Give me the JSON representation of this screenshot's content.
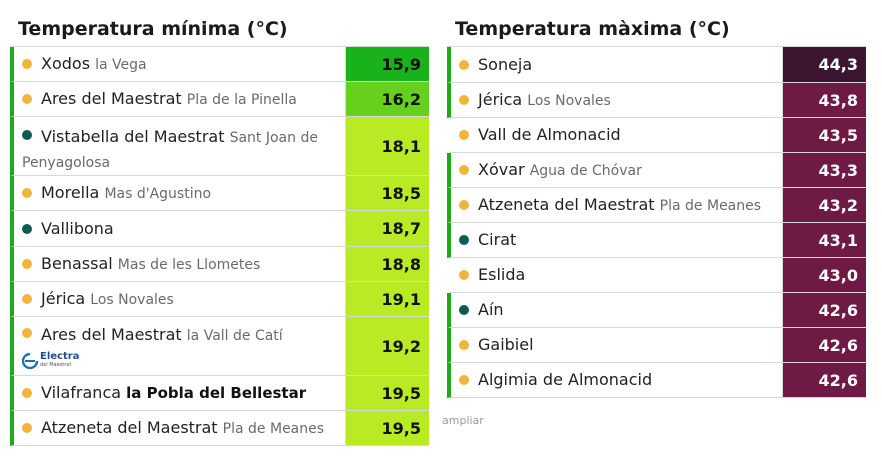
{
  "min": {
    "title": "Temperatura mínima (°C)",
    "rows": [
      {
        "name": "Xodos",
        "sub": "la Vega",
        "value": "15,9",
        "dot": "yellow",
        "color": "#19b21a"
      },
      {
        "name": "Ares del Maestrat",
        "sub": "Pla de la Pinella",
        "value": "16,2",
        "dot": "yellow",
        "color": "#66d11c"
      },
      {
        "name": "Vistabella del Maestrat",
        "sub": "Sant Joan de Penyagolosa",
        "value": "18,1",
        "dot": "teal",
        "color": "#b8eb23"
      },
      {
        "name": "Morella",
        "sub": "Mas d'Agustino",
        "value": "18,5",
        "dot": "yellow",
        "color": "#b8eb23"
      },
      {
        "name": "Vallibona",
        "sub": "",
        "value": "18,7",
        "dot": "teal",
        "color": "#b8eb23"
      },
      {
        "name": "Benassal",
        "sub": "Mas de les Llometes",
        "value": "18,8",
        "dot": "yellow",
        "color": "#b8eb23"
      },
      {
        "name": "Jérica",
        "sub": "Los Novales",
        "value": "19,1",
        "dot": "yellow",
        "color": "#b8eb23"
      },
      {
        "name": "Ares del Maestrat",
        "sub": "la Vall de Catí",
        "value": "19,2",
        "dot": "yellow",
        "color": "#b8eb23",
        "logo": "Electra",
        "logo_sub": "del Maestrat"
      },
      {
        "name": "Vilafranca",
        "sub": "la Pobla del Bellestar",
        "value": "19,5",
        "dot": "yellow",
        "color": "#b8eb23"
      },
      {
        "name": "Atzeneta del Maestrat",
        "sub": "Pla de Meanes",
        "value": "19,5",
        "dot": "yellow",
        "color": "#b8eb23"
      }
    ]
  },
  "max": {
    "title": "Temperatura màxima (°C)",
    "rows": [
      {
        "name": "Soneja",
        "sub": "",
        "value": "44,3",
        "dot": "yellow",
        "color": "#3c1530"
      },
      {
        "name": "Jérica",
        "sub": "Los Novales",
        "value": "43,8",
        "dot": "yellow",
        "color": "#6e1a45"
      },
      {
        "name": "Vall de Almonacid",
        "sub": "",
        "value": "43,5",
        "dot": "yellow",
        "color": "#6e1a45"
      },
      {
        "name": "Xóvar",
        "sub": "Agua de Chóvar",
        "value": "43,3",
        "dot": "yellow",
        "color": "#6e1a45"
      },
      {
        "name": "Atzeneta del Maestrat",
        "sub": "Pla de Meanes",
        "value": "43,2",
        "dot": "yellow",
        "color": "#6e1a45"
      },
      {
        "name": "Cirat",
        "sub": "",
        "value": "43,1",
        "dot": "teal",
        "color": "#6e1a45"
      },
      {
        "name": "Eslida",
        "sub": "",
        "value": "43,0",
        "dot": "yellow",
        "color": "#6e1a45"
      },
      {
        "name": "Aín",
        "sub": "",
        "value": "42,6",
        "dot": "teal",
        "color": "#6e1a45"
      },
      {
        "name": "Gaibiel",
        "sub": "",
        "value": "42,6",
        "dot": "yellow",
        "color": "#6e1a45"
      },
      {
        "name": "Algimia de Almonacid",
        "sub": "",
        "value": "42,6",
        "dot": "yellow",
        "color": "#6e1a45"
      }
    ]
  },
  "footer": {
    "expand_label": "ampliar"
  },
  "colors": {
    "accent_border": "#1faa1a"
  }
}
